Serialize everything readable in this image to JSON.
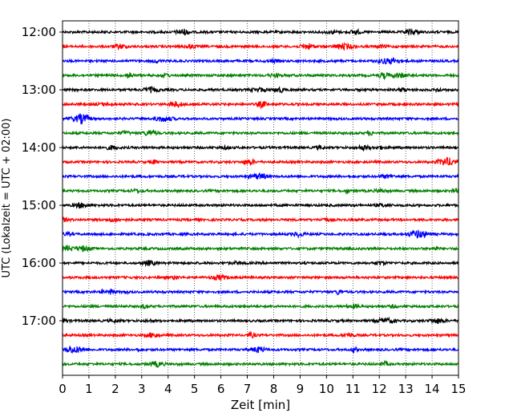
{
  "chart_data": {
    "type": "line",
    "title": "",
    "xlabel": "Zeit  [min]",
    "ylabel": "UTC (Lokalzeit = UTC + 02:00)",
    "xlim": [
      0,
      15
    ],
    "x_ticks": [
      0,
      1,
      2,
      3,
      4,
      5,
      6,
      7,
      8,
      9,
      10,
      11,
      12,
      13,
      14,
      15
    ],
    "x_tick_labels": [
      "0",
      "1",
      "2",
      "3",
      "4",
      "5",
      "6",
      "7",
      "8",
      "9",
      "10",
      "11",
      "12",
      "13",
      "14",
      "15"
    ],
    "y_tick_labels": [
      "12:00",
      "13:00",
      "14:00",
      "15:00",
      "16:00",
      "17:00"
    ],
    "y_tick_hours": [
      12,
      13,
      14,
      15,
      16,
      17
    ],
    "time_start_hour": 12,
    "trace_interval_min": 15,
    "trace_count": 24,
    "trace_colors": [
      "#000000",
      "#ff0000",
      "#0000ff",
      "#008000"
    ],
    "grid": "vertical dotted",
    "legend": "none"
  }
}
